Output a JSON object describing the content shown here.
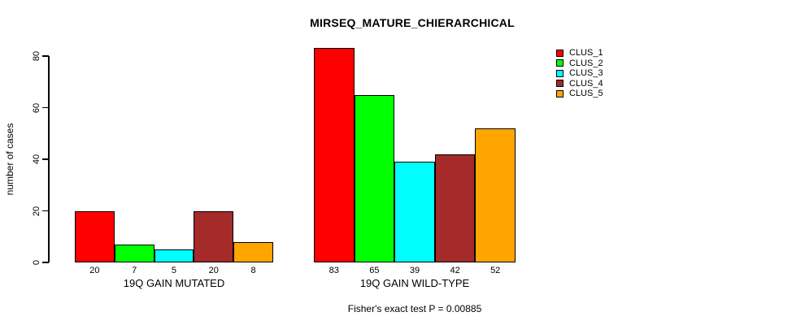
{
  "chart_data": {
    "type": "bar",
    "title": "MIRSEQ_MATURE_CHIERARCHICAL",
    "xlabel": "",
    "ylabel": "number of cases",
    "ylim": [
      0,
      80
    ],
    "yticks": [
      0,
      20,
      40,
      60,
      80
    ],
    "grid": false,
    "legend_position": "top-right",
    "categories": [
      "19Q GAIN MUTATED",
      "19Q GAIN WILD-TYPE"
    ],
    "series": [
      {
        "name": "CLUS_1",
        "color": "#FF0000",
        "values": [
          20,
          83
        ]
      },
      {
        "name": "CLUS_2",
        "color": "#00FF00",
        "values": [
          7,
          65
        ]
      },
      {
        "name": "CLUS_3",
        "color": "#00FFFF",
        "values": [
          5,
          39
        ]
      },
      {
        "name": "CLUS_4",
        "color": "#A52A2A",
        "values": [
          20,
          42
        ]
      },
      {
        "name": "CLUS_5",
        "color": "#FFA500",
        "values": [
          8,
          52
        ]
      }
    ],
    "bar_value_labels": [
      [
        "20",
        "7",
        "5",
        "20",
        "8"
      ],
      [
        "83",
        "65",
        "39",
        "42",
        "52"
      ]
    ],
    "annotation": "Fisher's exact test P = 0.00885"
  }
}
